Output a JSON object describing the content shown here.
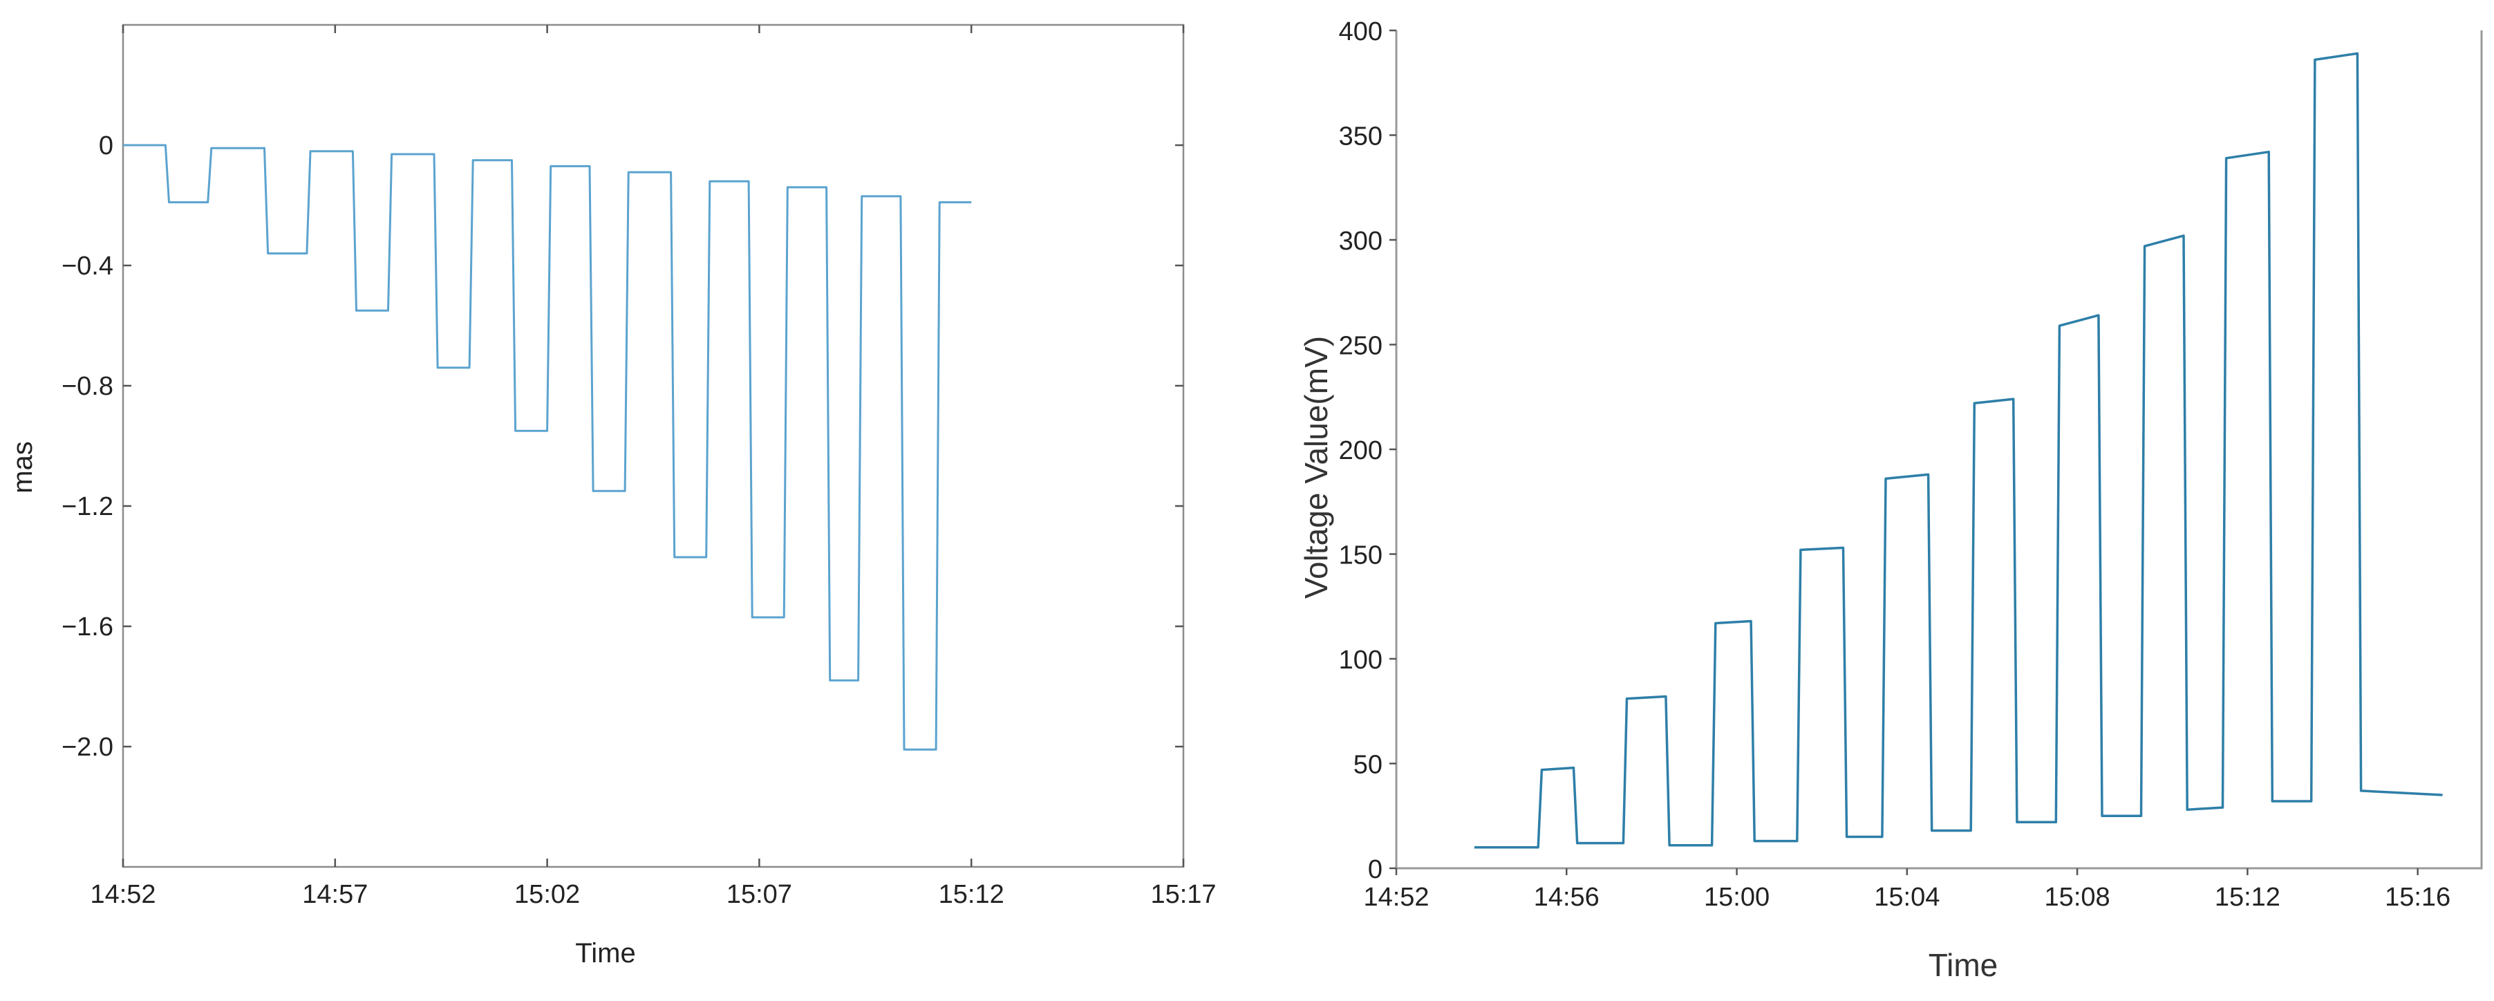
{
  "chart_data": [
    {
      "type": "line",
      "title": "",
      "xlabel": "Time",
      "ylabel": "mas",
      "ylim": [
        -2.4,
        0.4
      ],
      "x_ticks": [
        "14:52",
        "14:57",
        "15:02",
        "15:07",
        "15:12",
        "15:17"
      ],
      "y_ticks": [
        "0",
        "−0.4",
        "−0.8",
        "−1.2",
        "−1.6",
        "−2.0"
      ],
      "grid": false,
      "series": [
        {
          "color": "#5ba3cf",
          "x": [
            "14:52:00",
            "14:53:00",
            "14:53:05",
            "14:54:00",
            "14:54:05",
            "14:55:20",
            "14:55:25",
            "14:56:20",
            "14:56:25",
            "14:57:25",
            "14:57:30",
            "14:58:15",
            "14:58:20",
            "14:59:20",
            "14:59:25",
            "15:00:10",
            "15:00:15",
            "15:01:10",
            "15:01:15",
            "15:02:00",
            "15:02:05",
            "15:03:00",
            "15:03:05",
            "15:03:50",
            "15:03:55",
            "15:04:55",
            "15:05:00",
            "15:05:45",
            "15:05:50",
            "15:06:45",
            "15:06:50",
            "15:07:35",
            "15:07:40",
            "15:08:35",
            "15:08:40",
            "15:09:20",
            "15:09:25",
            "15:10:20",
            "15:10:25",
            "15:11:10",
            "15:11:15",
            "15:12:00"
          ],
          "y": [
            0.0,
            0.0,
            -0.19,
            -0.19,
            -0.01,
            -0.01,
            -0.36,
            -0.36,
            -0.02,
            -0.02,
            -0.55,
            -0.55,
            -0.03,
            -0.03,
            -0.74,
            -0.74,
            -0.05,
            -0.05,
            -0.95,
            -0.95,
            -0.07,
            -0.07,
            -1.15,
            -1.15,
            -0.09,
            -0.09,
            -1.37,
            -1.37,
            -0.12,
            -0.12,
            -1.57,
            -1.57,
            -0.14,
            -0.14,
            -1.78,
            -1.78,
            -0.17,
            -0.17,
            -2.01,
            -2.01,
            -0.19,
            -0.19
          ]
        }
      ]
    },
    {
      "type": "line",
      "title": "",
      "xlabel": "Time",
      "ylabel": "Voltage Value(mV)",
      "ylim": [
        0,
        400
      ],
      "x_ticks": [
        "14:52",
        "14:56",
        "15:00",
        "15:04",
        "15:08",
        "15:12",
        "15:16"
      ],
      "y_ticks": [
        "0",
        "50",
        "100",
        "150",
        "200",
        "250",
        "300",
        "350",
        "400"
      ],
      "grid": false,
      "series": [
        {
          "color": "#2e7fa8",
          "x": [
            "14:53:50",
            "14:55:20",
            "14:55:25",
            "14:56:10",
            "14:56:15",
            "14:57:20",
            "14:57:25",
            "14:58:20",
            "14:58:25",
            "14:59:25",
            "14:59:30",
            "15:00:20",
            "15:00:25",
            "15:01:25",
            "15:01:30",
            "15:02:30",
            "15:02:35",
            "15:03:25",
            "15:03:30",
            "15:04:30",
            "15:04:35",
            "15:05:30",
            "15:05:35",
            "15:06:30",
            "15:06:35",
            "15:07:30",
            "15:07:35",
            "15:08:30",
            "15:08:35",
            "15:09:30",
            "15:09:35",
            "15:10:30",
            "15:10:35",
            "15:11:25",
            "15:11:30",
            "15:12:30",
            "15:12:35",
            "15:13:30",
            "15:13:35",
            "15:14:35",
            "15:14:40",
            "15:16:35"
          ],
          "y": [
            10,
            10,
            47,
            48,
            12,
            12,
            81,
            82,
            11,
            11,
            117,
            118,
            13,
            13,
            152,
            153,
            15,
            15,
            186,
            188,
            18,
            18,
            222,
            224,
            22,
            22,
            259,
            264,
            25,
            25,
            297,
            302,
            28,
            29,
            339,
            342,
            32,
            32,
            386,
            389,
            37,
            35
          ]
        }
      ]
    }
  ]
}
